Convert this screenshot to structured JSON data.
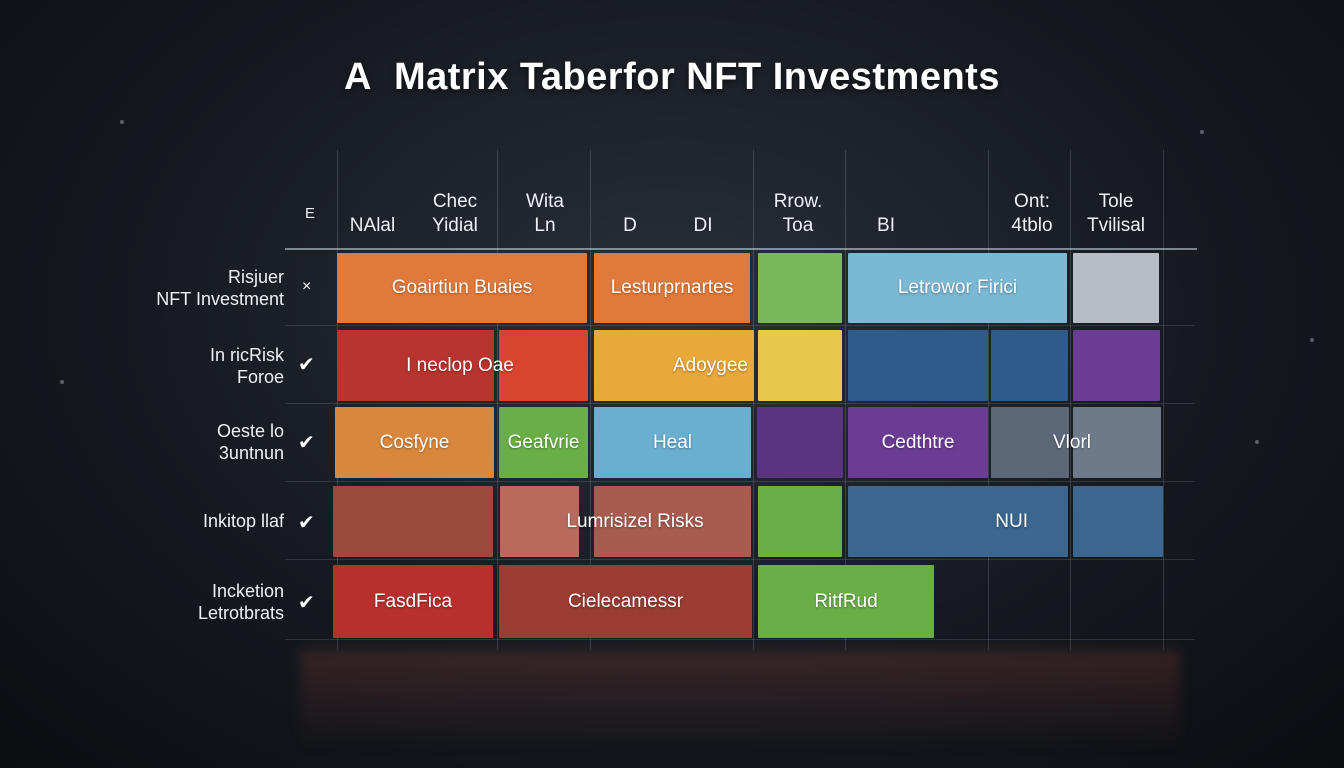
{
  "title": {
    "part1": "A",
    "part2": "Matrix Taberfor NFT Investments"
  },
  "header": {
    "corner": "E",
    "columns": [
      {
        "text": "NAlal"
      },
      {
        "text": "Chec\nYidial"
      },
      {
        "text": "Wita\nLn"
      },
      {
        "text": "D"
      },
      {
        "text": "DI"
      },
      {
        "text": "Rrow.\nToa"
      },
      {
        "text": "BI"
      },
      {
        "text": "Ont:\n4tblo"
      },
      {
        "text": "Tole\nTvilisal"
      }
    ]
  },
  "rows": [
    {
      "label": "Risjuer\nNFT Investment",
      "mark": "×"
    },
    {
      "label": "In ricRisk\nForoe",
      "mark": "✔"
    },
    {
      "label": "Oeste lo\n3untnun",
      "mark": "✔"
    },
    {
      "label": "Inkitop llaf",
      "mark": "✔"
    },
    {
      "label": "Incketion\nLetrotbrats",
      "mark": "✔"
    }
  ],
  "cells": [
    {
      "text": "Goairtiun Buaies",
      "color": "#e07a3c"
    },
    {
      "text": "Lesturprnartes",
      "color": "#e07a3c"
    },
    {
      "text": "",
      "color": "#7ab85c"
    },
    {
      "text": "Letrowor Firici",
      "color": "#7ab8d4"
    },
    {
      "text": "",
      "color": "#b8bcc4"
    },
    {
      "text": "",
      "color": "#b8342e"
    },
    {
      "text": "I neclop Oae",
      "color": "#d8452e"
    },
    {
      "text": "Adoygee",
      "color": "#e8a83c"
    },
    {
      "text": "",
      "color": "#e8c84a"
    },
    {
      "text": "",
      "color": "#2e5a8c"
    },
    {
      "text": "",
      "color": "#2e5a8c"
    },
    {
      "text": "",
      "color": "#6a3c94"
    },
    {
      "text": "Cosfyne",
      "color": "#d8883c"
    },
    {
      "text": "Geafvrie",
      "color": "#6aae48"
    },
    {
      "text": "Heal",
      "color": "#6aaed0"
    },
    {
      "text": "",
      "color": "#5a3480"
    },
    {
      "text": "Cedthtre",
      "color": "#6a3c94"
    },
    {
      "text": "Vlorl",
      "color": "#5c6878"
    },
    {
      "text": "",
      "color": "#6e7a8a"
    },
    {
      "text": "",
      "color": "#9a4a3c"
    },
    {
      "text": "",
      "color": "#b86a5c"
    },
    {
      "text": "Lumrisizel Risks",
      "color": "#a85c50"
    },
    {
      "text": "",
      "color": "#6aae48"
    },
    {
      "text": "NUI",
      "color": "#3a6690"
    },
    {
      "text": "",
      "color": "#3a6690"
    },
    {
      "text": "FasdFica",
      "color": "#b8302e"
    },
    {
      "text": "Cielecamessr",
      "color": "#9a3c34"
    },
    {
      "text": "RitfRud",
      "color": "#6aae48"
    }
  ]
}
